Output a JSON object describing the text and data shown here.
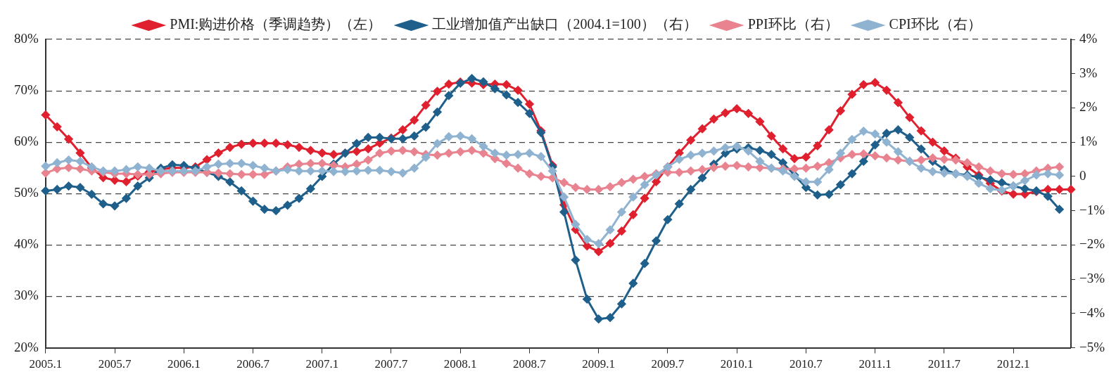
{
  "chart_data": {
    "type": "line",
    "categories": [
      "2005.1",
      null,
      null,
      null,
      null,
      null,
      "2005.7",
      null,
      null,
      null,
      null,
      null,
      "2006.1",
      null,
      null,
      null,
      null,
      null,
      "2006.7",
      null,
      null,
      null,
      null,
      null,
      "2007.1",
      null,
      null,
      null,
      null,
      null,
      "2007.7",
      null,
      null,
      null,
      null,
      null,
      "2008.1",
      null,
      null,
      null,
      null,
      null,
      "2008.7",
      null,
      null,
      null,
      null,
      null,
      "2009.1",
      null,
      null,
      null,
      null,
      null,
      "2009.7",
      null,
      null,
      null,
      null,
      null,
      "2010.1",
      null,
      null,
      null,
      null,
      null,
      "2010.7",
      null,
      null,
      null,
      null,
      null,
      "2011.1",
      null,
      null,
      null,
      null,
      null,
      "2011.7",
      null,
      null,
      null,
      null,
      null,
      "2012.1",
      null,
      null,
      null,
      null,
      null
    ],
    "series": [
      {
        "name": "PMI:购进价格（季调趋势）（左）",
        "color": "#e0202e",
        "values": [
          65.3,
          63.0,
          60.6,
          57.9,
          55.0,
          53.1,
          52.6,
          52.3,
          53.4,
          54.2,
          54.7,
          55.0,
          55.0,
          55.2,
          56.6,
          57.9,
          59.0,
          59.6,
          59.8,
          59.8,
          59.8,
          59.5,
          59.0,
          58.4,
          57.9,
          57.6,
          57.9,
          58.2,
          58.7,
          59.8,
          60.8,
          62.4,
          64.3,
          67.2,
          69.9,
          71.3,
          71.7,
          71.5,
          71.2,
          71.3,
          71.2,
          70.1,
          67.4,
          62.2,
          55.5,
          47.8,
          43.0,
          39.8,
          38.7,
          40.3,
          42.7,
          45.9,
          49.1,
          52.3,
          55.2,
          57.9,
          60.4,
          62.6,
          64.5,
          65.7,
          66.5,
          65.6,
          64.0,
          61.2,
          58.7,
          56.8,
          57.1,
          59.3,
          62.4,
          66.1,
          69.3,
          71.2,
          71.6,
          70.1,
          67.7,
          64.8,
          62.2,
          60.0,
          58.3,
          56.9,
          55.2,
          53.6,
          52.0,
          50.5,
          49.9,
          49.9,
          50.4,
          50.8,
          50.8,
          50.8
        ]
      },
      {
        "name": "工业增加值产出缺口（2004.1=100）（右）",
        "color": "#1f5f8b",
        "axis": "y2",
        "values": [
          -0.42,
          -0.38,
          -0.28,
          -0.32,
          -0.52,
          -0.8,
          -0.86,
          -0.64,
          -0.28,
          -0.04,
          0.24,
          0.34,
          0.32,
          0.24,
          0.12,
          0,
          -0.16,
          -0.42,
          -0.72,
          -0.96,
          -1.0,
          -0.84,
          -0.64,
          -0.36,
          0,
          0.36,
          0.68,
          0.96,
          1.14,
          1.14,
          1.1,
          1.1,
          1.18,
          1.44,
          1.88,
          2.36,
          2.72,
          2.86,
          2.76,
          2.56,
          2.38,
          2.16,
          1.84,
          1.28,
          0.28,
          -1.04,
          -2.44,
          -3.58,
          -4.16,
          -4.12,
          -3.72,
          -3.12,
          -2.54,
          -1.88,
          -1.26,
          -0.8,
          -0.38,
          -0.04,
          0.36,
          0.68,
          0.8,
          0.84,
          0.76,
          0.64,
          0.4,
          0.04,
          -0.32,
          -0.54,
          -0.52,
          -0.24,
          0.08,
          0.44,
          0.92,
          1.26,
          1.36,
          1.14,
          0.8,
          0.44,
          0.2,
          0.08,
          0.04,
          -0.02,
          -0.1,
          -0.18,
          -0.28,
          -0.36,
          -0.42,
          -0.58,
          -0.96,
          null
        ]
      },
      {
        "name": "PPI环比（右）",
        "color": "#e8838f",
        "axis": "y2",
        "values": [
          0.1,
          0.22,
          0.26,
          0.22,
          0.16,
          0.12,
          0.08,
          0.08,
          0.06,
          0.06,
          0.08,
          0.12,
          0.12,
          0.12,
          0.12,
          0.1,
          0.08,
          0.06,
          0.06,
          0.06,
          0.16,
          0.28,
          0.36,
          0.38,
          0.38,
          0.32,
          0.28,
          0.36,
          0.48,
          0.68,
          0.74,
          0.76,
          0.72,
          0.64,
          0.62,
          0.68,
          0.72,
          0.76,
          0.68,
          0.52,
          0.38,
          0.24,
          0.08,
          0,
          -0.04,
          -0.18,
          -0.32,
          -0.38,
          -0.38,
          -0.3,
          -0.18,
          -0.08,
          0,
          0.08,
          0.12,
          0.12,
          0.16,
          0.2,
          0.26,
          0.3,
          0.32,
          0.28,
          0.26,
          0.24,
          0.22,
          0.22,
          0.24,
          0.3,
          0.4,
          0.54,
          0.64,
          0.66,
          0.6,
          0.54,
          0.48,
          0.44,
          0.48,
          0.54,
          0.5,
          0.48,
          0.4,
          0.28,
          0.16,
          0.08,
          0.06,
          0.08,
          0.16,
          0.24,
          0.28,
          null
        ]
      },
      {
        "name": "CPI环比（右）",
        "color": "#8fb3d0",
        "axis": "y2",
        "values": [
          0.3,
          0.4,
          0.48,
          0.44,
          0.28,
          0.16,
          0.16,
          0.2,
          0.28,
          0.24,
          0.16,
          0.16,
          0.16,
          0.16,
          0.28,
          0.36,
          0.38,
          0.38,
          0.32,
          0.24,
          0.16,
          0.2,
          0.16,
          0.16,
          0.16,
          0.14,
          0.14,
          0.16,
          0.18,
          0.18,
          0.14,
          0.1,
          0.24,
          0.56,
          0.96,
          1.16,
          1.18,
          1.1,
          0.88,
          0.68,
          0.62,
          0.64,
          0.68,
          0.58,
          0.16,
          -0.6,
          -1.4,
          -1.84,
          -1.96,
          -1.56,
          -1.04,
          -0.6,
          -0.24,
          0.04,
          0.28,
          0.5,
          0.62,
          0.68,
          0.74,
          0.84,
          0.88,
          0.74,
          0.44,
          0.24,
          0.16,
          0,
          -0.16,
          -0.16,
          0.2,
          0.68,
          1.08,
          1.32,
          1.24,
          1.0,
          0.72,
          0.44,
          0.24,
          0.14,
          0.1,
          0.08,
          0,
          -0.2,
          -0.36,
          -0.4,
          -0.28,
          -0.12,
          0.04,
          0.08,
          0.04,
          null
        ]
      }
    ],
    "ylim": [
      20,
      80
    ],
    "yticks": [
      {
        "value": 20,
        "label": "20%"
      },
      {
        "value": 30,
        "label": "30%"
      },
      {
        "value": 40,
        "label": "40%"
      },
      {
        "value": 50,
        "label": "50%"
      },
      {
        "value": 60,
        "label": "60%"
      },
      {
        "value": 70,
        "label": "70%"
      },
      {
        "value": 80,
        "label": "80%"
      }
    ],
    "y2lim": [
      -5,
      4
    ],
    "y2ticks": [
      {
        "value": -5,
        "label": "−5%"
      },
      {
        "value": -4,
        "label": "−4%"
      },
      {
        "value": -3,
        "label": "−3%"
      },
      {
        "value": -2,
        "label": "−2%"
      },
      {
        "value": -1,
        "label": "−1%"
      },
      {
        "value": 0,
        "label": "0"
      },
      {
        "value": 1,
        "label": "1%"
      },
      {
        "value": 2,
        "label": "2%"
      },
      {
        "value": 3,
        "label": "3%"
      },
      {
        "value": 4,
        "label": "4%"
      }
    ],
    "grid": "y",
    "legend": "top",
    "marker": "diamond",
    "line_style": "solid"
  }
}
